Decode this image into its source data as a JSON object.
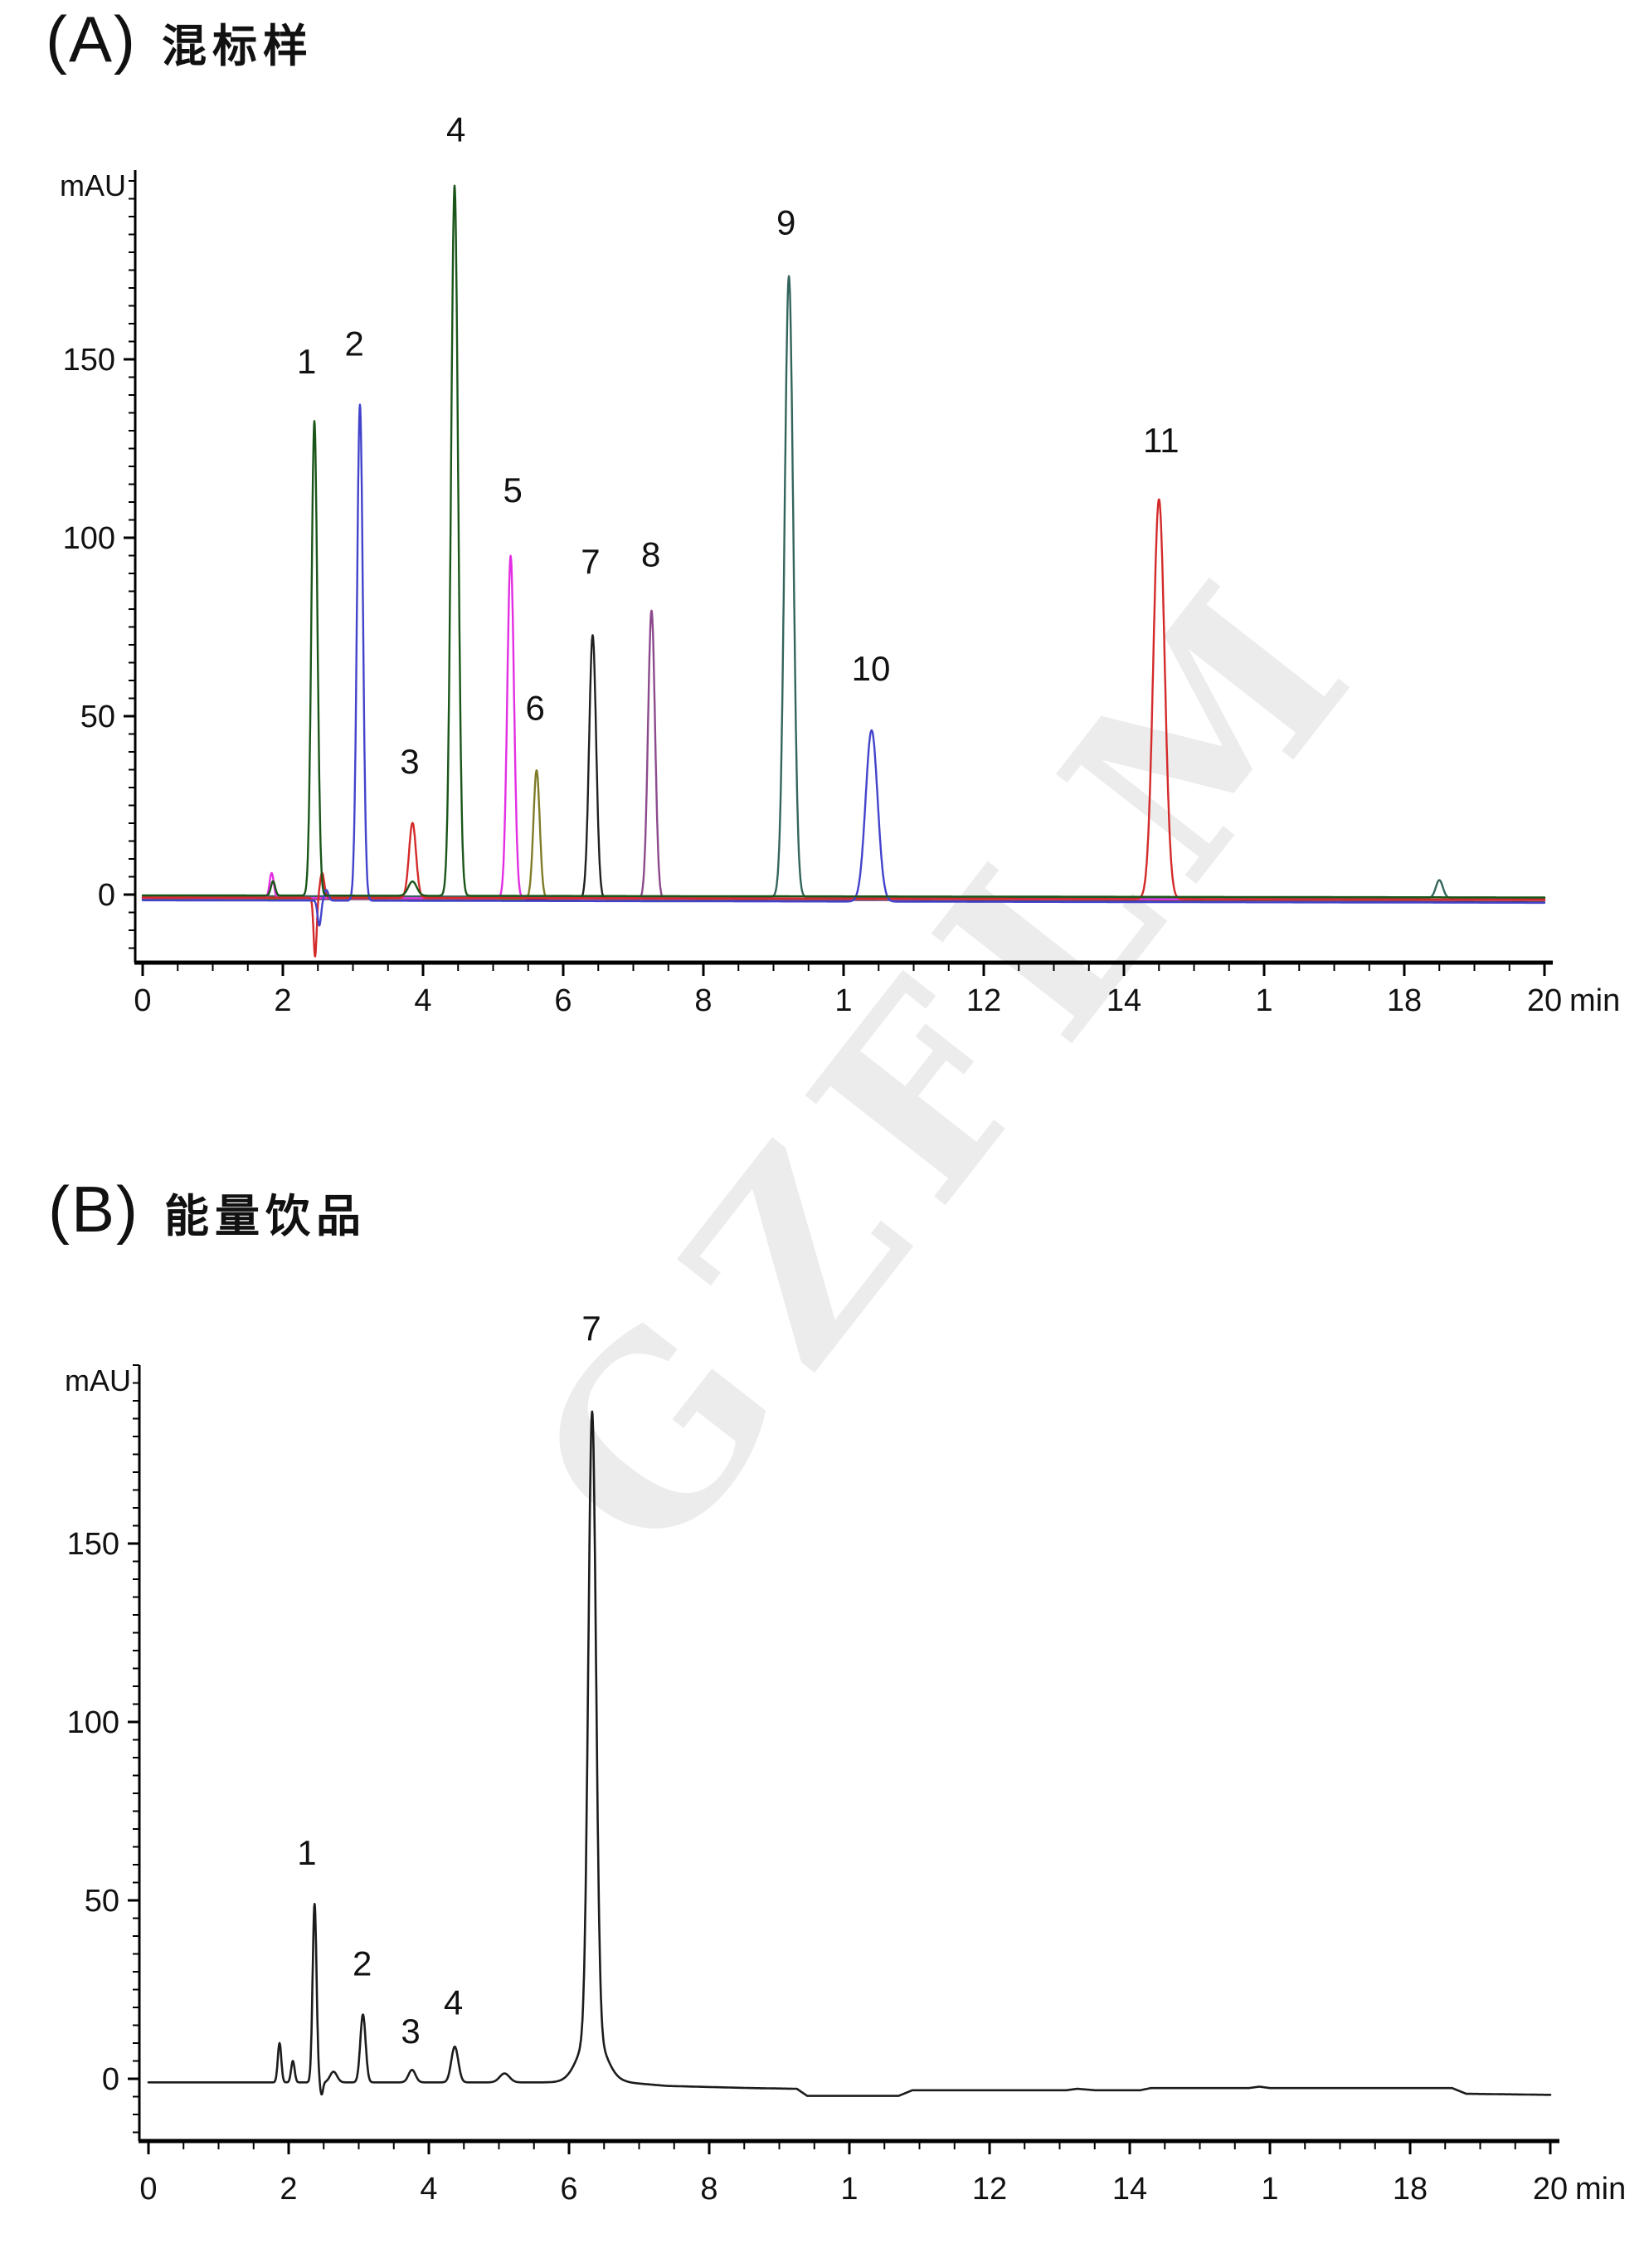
{
  "watermark": {
    "text": "GZFLM"
  },
  "panels": [
    {
      "label": "(A)",
      "title": "混标样"
    },
    {
      "label": "(B)",
      "title": "能量饮品"
    }
  ],
  "chart_data": [
    {
      "type": "line",
      "panel": "A",
      "title": "混标样",
      "ylabel": "mAU",
      "xlabel": "min",
      "xlim": [
        0,
        20
      ],
      "ylim": [
        -19,
        203
      ],
      "x_tick_values": [
        0,
        2,
        4,
        6,
        8,
        10,
        12,
        14,
        16,
        18,
        20
      ],
      "x_tick_labels": [
        "0",
        "2",
        "4",
        "6",
        "8",
        "1",
        "12",
        "14",
        "1",
        "18",
        "20"
      ],
      "y_tick_values": [
        0,
        50,
        100,
        150
      ],
      "y_tick_labels": [
        "0",
        "50",
        "100",
        "150"
      ],
      "x_minor_step": 0.5,
      "y_minor_step": 5,
      "grid": false,
      "peak_annotations": [
        {
          "label": "1",
          "t": 2.34,
          "v": 146
        },
        {
          "label": "2",
          "t": 3.02,
          "v": 151
        },
        {
          "label": "3",
          "t": 3.81,
          "v": 34
        },
        {
          "label": "4",
          "t": 4.47,
          "v": 211
        },
        {
          "label": "5",
          "t": 5.28,
          "v": 110
        },
        {
          "label": "6",
          "t": 5.6,
          "v": 49
        },
        {
          "label": "7",
          "t": 6.39,
          "v": 90
        },
        {
          "label": "8",
          "t": 7.25,
          "v": 92
        },
        {
          "label": "9",
          "t": 9.18,
          "v": 185
        },
        {
          "label": "10",
          "t": 10.39,
          "v": 60
        },
        {
          "label": "11",
          "t": 14.53,
          "v": 124
        }
      ],
      "series": [
        {
          "name": "trace-teal",
          "color": "#34655c",
          "width": 2.4,
          "baseline": [
            [
              0,
              -0.4
            ],
            [
              20,
              -1.0
            ]
          ],
          "peaks": [
            [
              9.22,
              174,
              0.062
            ],
            [
              18.5,
              5,
              0.05
            ]
          ]
        },
        {
          "name": "trace-plum",
          "color": "#8c4a8c",
          "width": 2.4,
          "baseline": [
            [
              0,
              -1.2
            ],
            [
              20,
              -1.8
            ]
          ],
          "peaks": [
            [
              7.26,
              81,
              0.05
            ]
          ]
        },
        {
          "name": "trace-black",
          "color": "#202020",
          "width": 2.4,
          "baseline": [
            [
              0,
              -1.1
            ],
            [
              20,
              -1.7
            ]
          ],
          "peaks": [
            [
              6.42,
              74,
              0.05
            ]
          ]
        },
        {
          "name": "trace-olive",
          "color": "#7f7c28",
          "width": 2.4,
          "baseline": [
            [
              0,
              -1.0
            ],
            [
              20,
              -1.6
            ]
          ],
          "peaks": [
            [
              5.62,
              36,
              0.045
            ]
          ]
        },
        {
          "name": "trace-magenta",
          "color": "#e32ee3",
          "width": 2.4,
          "baseline": [
            [
              0,
              -0.9
            ],
            [
              20,
              -1.5
            ]
          ],
          "peaks": [
            [
              1.84,
              7,
              0.03
            ],
            [
              5.25,
              96,
              0.048
            ]
          ]
        },
        {
          "name": "trace-red",
          "color": "#d42a2a",
          "width": 2.4,
          "baseline": [
            [
              0,
              -0.8
            ],
            [
              20,
              -1.4
            ]
          ],
          "peaks": [
            [
              2.46,
              -16.5,
              0.022
            ],
            [
              2.56,
              7,
              0.03
            ],
            [
              3.85,
              21,
              0.05
            ],
            [
              14.5,
              112,
              0.08
            ]
          ]
        },
        {
          "name": "trace-blue",
          "color": "#4343cc",
          "width": 2.4,
          "baseline": [
            [
              0,
              -1.6
            ],
            [
              20,
              -2.3
            ]
          ],
          "peaks": [
            [
              2.52,
              -7,
              0.025
            ],
            [
              2.62,
              3,
              0.03
            ],
            [
              3.1,
              139,
              0.042
            ],
            [
              10.4,
              48,
              0.085
            ]
          ]
        },
        {
          "name": "trace-green",
          "color": "#1a561a",
          "width": 2.4,
          "baseline": [
            [
              0,
              -0.2
            ],
            [
              20,
              -0.8
            ]
          ],
          "peaks": [
            [
              1.86,
              4,
              0.03
            ],
            [
              2.45,
              133,
              0.042
            ],
            [
              3.85,
              4,
              0.06
            ],
            [
              4.45,
              199,
              0.05
            ]
          ]
        }
      ]
    },
    {
      "type": "line",
      "panel": "B",
      "title": "能量饮品",
      "ylabel": "mAU",
      "xlabel": "min",
      "xlim": [
        0,
        20
      ],
      "ylim": [
        -19,
        203
      ],
      "x_tick_values": [
        0,
        2,
        4,
        6,
        8,
        10,
        12,
        14,
        16,
        18,
        20
      ],
      "x_tick_labels": [
        "0",
        "2",
        "4",
        "6",
        "8",
        "1",
        "12",
        "14",
        "1",
        "18",
        "20"
      ],
      "y_tick_values": [
        0,
        50,
        100,
        150
      ],
      "y_tick_labels": [
        "0",
        "50",
        "100",
        "150"
      ],
      "x_minor_step": 0.5,
      "y_minor_step": 5,
      "grid": false,
      "peak_annotations": [
        {
          "label": "1",
          "t": 2.26,
          "v": 60
        },
        {
          "label": "2",
          "t": 3.05,
          "v": 29
        },
        {
          "label": "3",
          "t": 3.74,
          "v": 10
        },
        {
          "label": "4",
          "t": 4.35,
          "v": 18
        },
        {
          "label": "7",
          "t": 6.32,
          "v": 207
        }
      ],
      "series": [
        {
          "name": "trace-sample",
          "color": "#1c1c1c",
          "width": 2.6,
          "baseline": [
            [
              0,
              -1.0
            ],
            [
              6.8,
              -1.0
            ],
            [
              7.4,
              -2.0
            ],
            [
              8.6,
              -2.6
            ],
            [
              9.25,
              -2.8
            ],
            [
              9.4,
              -4.8
            ],
            [
              10.7,
              -4.8
            ],
            [
              10.9,
              -3.2
            ],
            [
              13.1,
              -3.2
            ],
            [
              13.25,
              -2.8
            ],
            [
              13.5,
              -3.2
            ],
            [
              14.15,
              -3.2
            ],
            [
              14.3,
              -2.6
            ],
            [
              15.7,
              -2.6
            ],
            [
              15.85,
              -2.2
            ],
            [
              16.0,
              -2.6
            ],
            [
              18.6,
              -2.6
            ],
            [
              18.8,
              -4.2
            ],
            [
              20,
              -4.5
            ]
          ],
          "peaks": [
            [
              1.87,
              11,
              0.025
            ],
            [
              2.06,
              6,
              0.025
            ],
            [
              2.37,
              50,
              0.028
            ],
            [
              2.47,
              -3.5,
              0.02
            ],
            [
              2.64,
              3,
              0.05
            ],
            [
              3.06,
              19,
              0.038
            ],
            [
              3.76,
              3.5,
              0.05
            ],
            [
              4.37,
              10,
              0.05
            ],
            [
              5.08,
              2.5,
              0.07
            ],
            [
              6.33,
              174,
              0.055
            ],
            [
              6.33,
              14,
              0.18
            ]
          ]
        }
      ]
    }
  ]
}
